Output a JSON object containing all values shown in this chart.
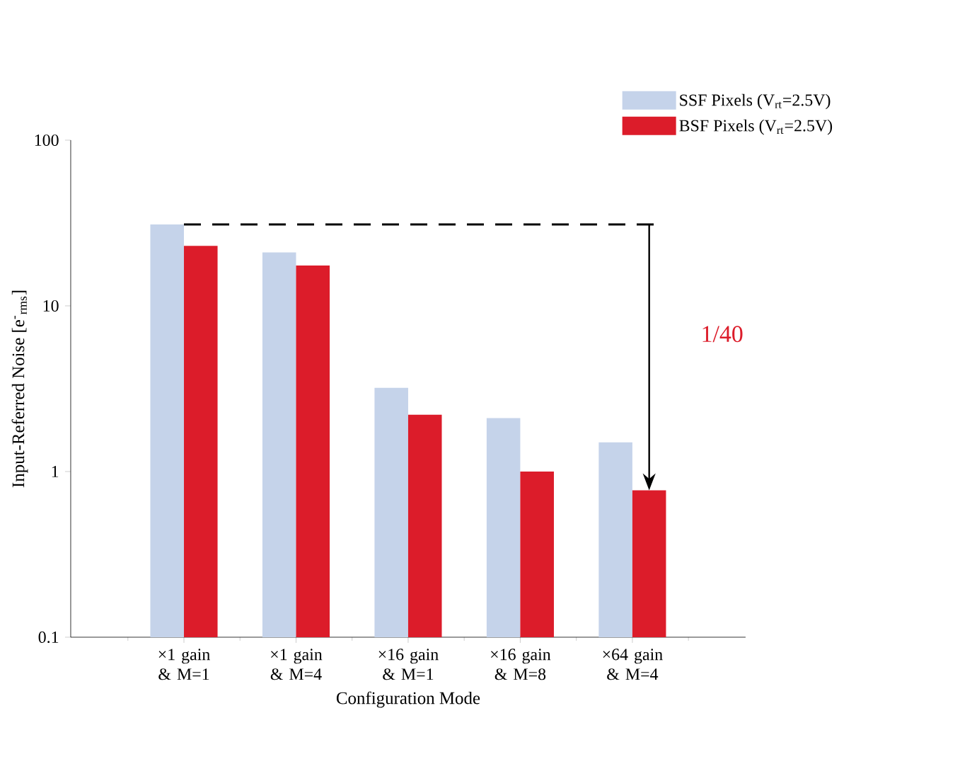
{
  "chart_data": {
    "type": "bar",
    "xlabel": "Configuration Mode",
    "ylabel": "Input-Referred Noise [e$^{-}$$_{rms}$]",
    "categories": [
      "×1 gain & M=1",
      "×1 gain & M=4",
      "×16 gain & M=1",
      "×16 gain & M=8",
      "×64 gain & M=4"
    ],
    "series": [
      {
        "name": "SSF Pixels (V$_{rt}$=2.5V)",
        "color": "#c5d3ea",
        "values": [
          31,
          21,
          3.2,
          2.1,
          1.5
        ]
      },
      {
        "name": "BSF Pixels (V$_{rt}$=2.5V)",
        "color": "#dc1c2a",
        "values": [
          23,
          17.5,
          2.2,
          1.0,
          0.77
        ]
      }
    ],
    "log": "y",
    "ylim": [
      0.1,
      100
    ],
    "yticks": [
      0.1,
      1,
      10,
      100
    ],
    "legend": "top right",
    "grid": false,
    "ref_lines": [
      {
        "axis": "y",
        "value": 31,
        "line_style": "dashed",
        "color": "#000000"
      }
    ],
    "annotations": [
      "1/40"
    ]
  }
}
